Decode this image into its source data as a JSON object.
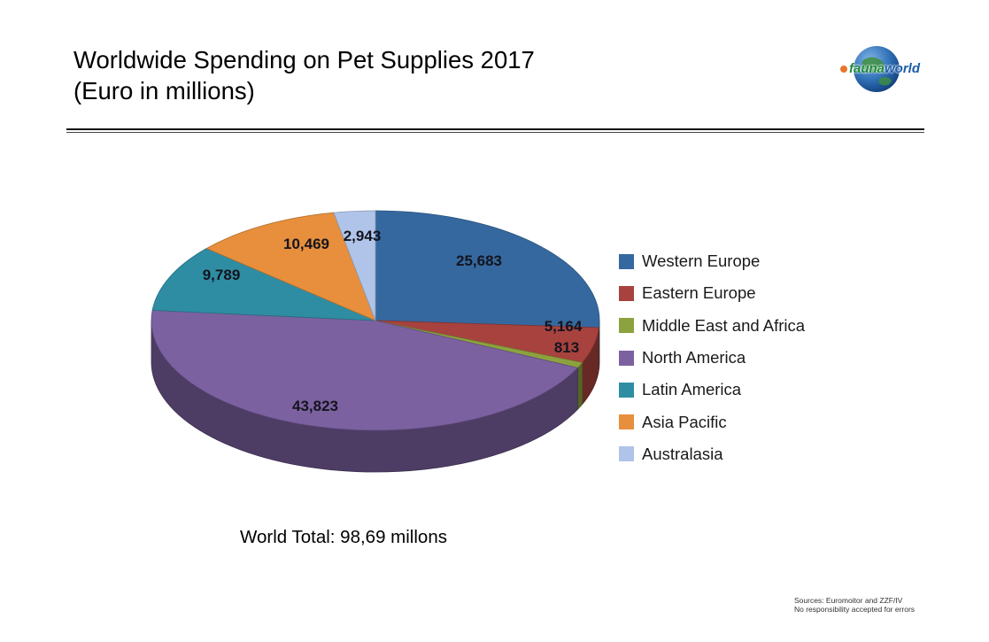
{
  "title": {
    "line1": "Worldwide Spending on Pet Supplies 2017",
    "line2": "(Euro in millions)"
  },
  "logo": {
    "part1": "fauna",
    "part2": "world"
  },
  "world_total": "World Total: 98,69 millons",
  "sources": {
    "line1": "Sources: Euromoitor and ZZF/IV",
    "line2": "No responsibility accepted for errors"
  },
  "chart_data": {
    "type": "pie",
    "style": "3d",
    "title": "Worldwide Spending on Pet Supplies 2017 (Euro in millions)",
    "unit": "Euro millions",
    "start_angle_deg": 0,
    "direction": "clockwise",
    "legend_position": "right",
    "categories": [
      "Western Europe",
      "Eastern Europe",
      "Middle East and Africa",
      "North America",
      "Latin America",
      "Asia Pacific",
      "Australasia"
    ],
    "values": [
      25683,
      5164,
      813,
      43823,
      9789,
      10469,
      2943
    ],
    "value_labels": [
      "25,683",
      "5,164",
      "813",
      "43,823",
      "9,789",
      "10,469",
      "2,943"
    ],
    "colors": [
      "#35689F",
      "#A8423E",
      "#8CA23F",
      "#7C61A1",
      "#2F8DA3",
      "#E78F3C",
      "#AFC4E8"
    ],
    "total": 98684,
    "total_label": "World Total: 98,69 millons"
  }
}
